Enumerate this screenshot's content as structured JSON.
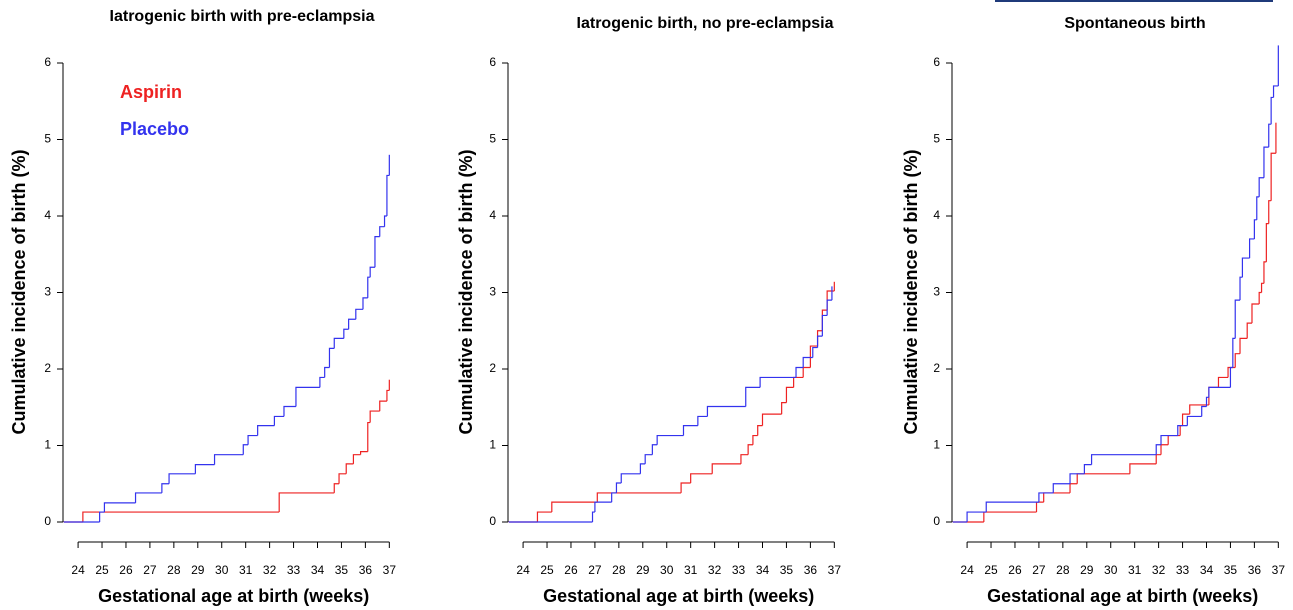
{
  "chart_data": [
    {
      "type": "line",
      "step": true,
      "title": "Iatrogenic birth with pre-eclampsia",
      "xlabel": "Gestational age at birth (weeks)",
      "ylabel": "Cumulative incidence of birth (%)",
      "xlim": [
        23.37,
        37.07
      ],
      "ylim": [
        0,
        6
      ],
      "xticks": [
        24,
        25,
        26,
        27,
        28,
        29,
        30,
        31,
        32,
        33,
        34,
        35,
        36,
        37
      ],
      "yticks": [
        0,
        1,
        2,
        3,
        4,
        5,
        6
      ],
      "legend": "upper left",
      "series": [
        {
          "name": "Aspirin",
          "color": "#ee2222",
          "x": [
            23.4,
            24.2,
            32.4,
            34.7,
            34.9,
            35.2,
            35.5,
            35.8,
            36.1,
            36.2,
            36.6,
            36.9,
            37.0
          ],
          "values": [
            0,
            0.13,
            0.38,
            0.5,
            0.63,
            0.76,
            0.88,
            0.92,
            1.3,
            1.45,
            1.58,
            1.72,
            1.86
          ]
        },
        {
          "name": "Placebo",
          "color": "#3333ee",
          "x": [
            23.4,
            24.9,
            25.1,
            26.4,
            27.5,
            27.8,
            28.9,
            29.7,
            30.9,
            31.1,
            31.5,
            32.2,
            32.6,
            33.1,
            34.1,
            34.3,
            34.5,
            34.7,
            35.1,
            35.3,
            35.6,
            35.9,
            36.1,
            36.2,
            36.4,
            36.6,
            36.8,
            36.9,
            37.0
          ],
          "values": [
            0,
            0.13,
            0.25,
            0.38,
            0.5,
            0.63,
            0.75,
            0.88,
            1.01,
            1.13,
            1.26,
            1.38,
            1.51,
            1.76,
            1.89,
            2.02,
            2.27,
            2.4,
            2.52,
            2.65,
            2.78,
            2.93,
            3.2,
            3.33,
            3.73,
            3.86,
            4.0,
            4.53,
            4.8
          ]
        }
      ]
    },
    {
      "type": "line",
      "step": true,
      "title": "Iatrogenic birth, no  pre-eclampsia",
      "xlabel": "Gestational age at birth (weeks)",
      "ylabel": "Cumulative incidence of birth (%)",
      "xlim": [
        23.37,
        37.07
      ],
      "ylim": [
        0,
        6
      ],
      "xticks": [
        24,
        25,
        26,
        27,
        28,
        29,
        30,
        31,
        32,
        33,
        34,
        35,
        36,
        37
      ],
      "yticks": [
        0,
        1,
        2,
        3,
        4,
        5,
        6
      ],
      "series": [
        {
          "name": "Aspirin",
          "color": "#ee2222",
          "x": [
            23.4,
            24.6,
            25.2,
            27.1,
            30.6,
            31.0,
            31.9,
            33.1,
            33.4,
            33.6,
            33.8,
            34.0,
            34.8,
            35.0,
            35.3,
            35.7,
            36.0,
            36.3,
            36.5,
            36.7,
            37.0
          ],
          "values": [
            0,
            0.13,
            0.26,
            0.38,
            0.51,
            0.63,
            0.76,
            0.88,
            1.01,
            1.13,
            1.26,
            1.41,
            1.56,
            1.76,
            1.89,
            2.02,
            2.3,
            2.5,
            2.77,
            3.02,
            3.14
          ]
        },
        {
          "name": "Placebo",
          "color": "#3333ee",
          "x": [
            23.4,
            26.9,
            27.0,
            27.7,
            27.9,
            28.1,
            28.9,
            29.1,
            29.4,
            29.6,
            30.7,
            31.3,
            31.7,
            33.3,
            33.9,
            35.4,
            35.7,
            36.1,
            36.3,
            36.5,
            36.7,
            36.9
          ],
          "values": [
            0,
            0.13,
            0.26,
            0.38,
            0.51,
            0.63,
            0.76,
            0.88,
            1.01,
            1.13,
            1.26,
            1.38,
            1.51,
            1.76,
            1.89,
            2.02,
            2.15,
            2.28,
            2.43,
            2.7,
            2.9,
            3.08
          ]
        }
      ]
    },
    {
      "type": "line",
      "step": true,
      "title": "Spontaneous birth",
      "xlabel": "Gestational age at birth (weeks)",
      "ylabel": "Cumulative incidence of birth (%)",
      "xlim": [
        23.37,
        37.07
      ],
      "ylim": [
        0,
        6
      ],
      "xticks": [
        24,
        25,
        26,
        27,
        28,
        29,
        30,
        31,
        32,
        33,
        34,
        35,
        36,
        37
      ],
      "yticks": [
        0,
        1,
        2,
        3,
        4,
        5,
        6
      ],
      "series": [
        {
          "name": "Aspirin",
          "color": "#ee2222",
          "x": [
            23.4,
            24.7,
            26.9,
            27.2,
            28.3,
            28.6,
            30.8,
            31.9,
            32.1,
            32.4,
            32.9,
            33.0,
            33.3,
            34.1,
            34.5,
            34.9,
            35.2,
            35.4,
            35.7,
            35.9,
            36.2,
            36.3,
            36.4,
            36.5,
            36.6,
            36.7,
            36.9
          ],
          "values": [
            0,
            0.13,
            0.26,
            0.38,
            0.5,
            0.63,
            0.76,
            0.88,
            1.01,
            1.13,
            1.26,
            1.41,
            1.53,
            1.76,
            1.89,
            2.02,
            2.2,
            2.4,
            2.6,
            2.85,
            3.0,
            3.12,
            3.4,
            3.9,
            4.2,
            4.82,
            5.22
          ]
        },
        {
          "name": "Placebo",
          "color": "#3333ee",
          "x": [
            23.4,
            24.0,
            24.8,
            27.0,
            27.6,
            28.3,
            28.9,
            29.2,
            31.9,
            32.1,
            32.8,
            33.2,
            33.8,
            34.0,
            34.1,
            35.0,
            35.1,
            35.2,
            35.4,
            35.5,
            35.8,
            36.0,
            36.1,
            36.2,
            36.4,
            36.6,
            36.7,
            36.8,
            37.0
          ],
          "values": [
            0,
            0.13,
            0.26,
            0.38,
            0.5,
            0.63,
            0.75,
            0.88,
            1.01,
            1.13,
            1.26,
            1.38,
            1.51,
            1.63,
            1.76,
            2.02,
            2.4,
            2.9,
            3.2,
            3.45,
            3.7,
            3.95,
            4.25,
            4.5,
            4.9,
            5.2,
            5.55,
            5.7,
            6.23
          ]
        }
      ]
    }
  ]
}
